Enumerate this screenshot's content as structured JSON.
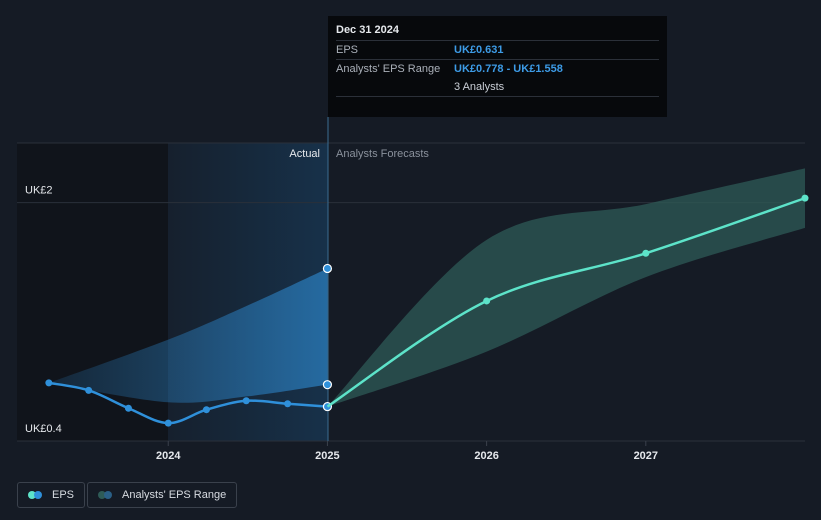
{
  "chart_data": {
    "type": "line",
    "xlim": [
      2023.05,
      2028.0
    ],
    "xticks": [
      2024,
      2025,
      2026,
      2027
    ],
    "ylim": [
      0.4,
      2.4
    ],
    "yticks": [
      {
        "value": 0.4,
        "label": "UK£0.4"
      },
      {
        "value": 2,
        "label": "UK£2"
      }
    ],
    "series": [
      {
        "name": "EPS",
        "color": "#2f90da",
        "x": [
          2023.25,
          2023.5,
          2023.75,
          2024.0,
          2024.24,
          2024.49,
          2024.75,
          2025.0
        ],
        "values": [
          0.79,
          0.74,
          0.62,
          0.52,
          0.61,
          0.67,
          0.65,
          0.631
        ]
      },
      {
        "color": "#5de3c9",
        "x": [
          2025.0,
          2026.0,
          2027.0,
          2028.0
        ],
        "values": [
          0.631,
          1.34,
          1.66,
          2.03
        ]
      }
    ],
    "ranges": [
      {
        "name": "Analysts' EPS Range",
        "color": "#2f90da",
        "x": [
          2023.25,
          2024.0,
          2024.5,
          2025.0
        ],
        "low": [
          0.79,
          0.66,
          0.7,
          0.778
        ],
        "high": [
          0.79,
          1.08,
          1.31,
          1.558
        ]
      },
      {
        "color": "#2e5b57",
        "x": [
          2025.0,
          2026.0,
          2027.0,
          2028.0
        ],
        "low": [
          0.631,
          1.0,
          1.5,
          1.83
        ],
        "high": [
          0.631,
          1.75,
          1.99,
          2.23
        ]
      }
    ],
    "annotations": {
      "actual": "Actual",
      "forecast": "Analysts Forecasts"
    },
    "tooltip": {
      "date": "Dec 31 2024",
      "rows": [
        {
          "label": "EPS",
          "value": "UK£0.631"
        },
        {
          "label": "Analysts' EPS Range",
          "value": "UK£0.778 - UK£1.558"
        }
      ],
      "note": "3 Analysts"
    }
  }
}
